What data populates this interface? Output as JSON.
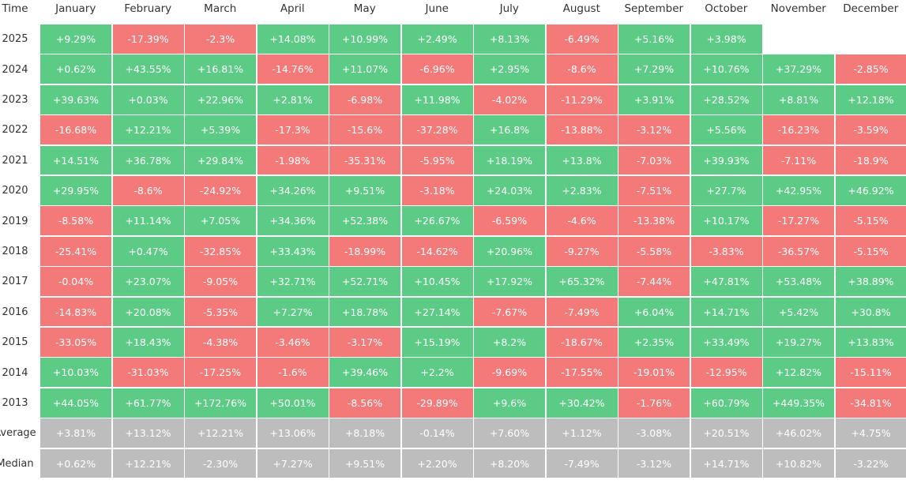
{
  "table": {
    "header": [
      "Time",
      "January",
      "February",
      "March",
      "April",
      "May",
      "June",
      "July",
      "August",
      "September",
      "October",
      "November",
      "December"
    ],
    "colors": {
      "up": "#5ccb85",
      "down": "#f47a7a",
      "stat": "#bdbdbd"
    },
    "rows": [
      {
        "label": "2025",
        "cells": [
          "+9.29%",
          "-17.39%",
          "-2.3%",
          "+14.08%",
          "+10.99%",
          "+2.49%",
          "+8.13%",
          "-6.49%",
          "+5.16%",
          "+3.98%"
        ]
      },
      {
        "label": "2024",
        "cells": [
          "+0.62%",
          "+43.55%",
          "+16.81%",
          "-14.76%",
          "+11.07%",
          "-6.96%",
          "+2.95%",
          "-8.6%",
          "+7.29%",
          "+10.76%",
          "+37.29%",
          "-2.85%"
        ]
      },
      {
        "label": "2023",
        "cells": [
          "+39.63%",
          "+0.03%",
          "+22.96%",
          "+2.81%",
          "-6.98%",
          "+11.98%",
          "-4.02%",
          "-11.29%",
          "+3.91%",
          "+28.52%",
          "+8.81%",
          "+12.18%"
        ]
      },
      {
        "label": "2022",
        "cells": [
          "-16.68%",
          "+12.21%",
          "+5.39%",
          "-17.3%",
          "-15.6%",
          "-37.28%",
          "+16.8%",
          "-13.88%",
          "-3.12%",
          "+5.56%",
          "-16.23%",
          "-3.59%"
        ]
      },
      {
        "label": "2021",
        "cells": [
          "+14.51%",
          "+36.78%",
          "+29.84%",
          "-1.98%",
          "-35.31%",
          "-5.95%",
          "+18.19%",
          "+13.8%",
          "-7.03%",
          "+39.93%",
          "-7.11%",
          "-18.9%"
        ]
      },
      {
        "label": "2020",
        "cells": [
          "+29.95%",
          "-8.6%",
          "-24.92%",
          "+34.26%",
          "+9.51%",
          "-3.18%",
          "+24.03%",
          "+2.83%",
          "-7.51%",
          "+27.7%",
          "+42.95%",
          "+46.92%"
        ]
      },
      {
        "label": "2019",
        "cells": [
          "-8.58%",
          "+11.14%",
          "+7.05%",
          "+34.36%",
          "+52.38%",
          "+26.67%",
          "-6.59%",
          "-4.6%",
          "-13.38%",
          "+10.17%",
          "-17.27%",
          "-5.15%"
        ]
      },
      {
        "label": "2018",
        "cells": [
          "-25.41%",
          "+0.47%",
          "-32.85%",
          "+33.43%",
          "-18.99%",
          "-14.62%",
          "+20.96%",
          "-9.27%",
          "-5.58%",
          "-3.83%",
          "-36.57%",
          "-5.15%"
        ]
      },
      {
        "label": "2017",
        "cells": [
          "-0.04%",
          "+23.07%",
          "-9.05%",
          "+32.71%",
          "+52.71%",
          "+10.45%",
          "+17.92%",
          "+65.32%",
          "-7.44%",
          "+47.81%",
          "+53.48%",
          "+38.89%"
        ]
      },
      {
        "label": "2016",
        "cells": [
          "-14.83%",
          "+20.08%",
          "-5.35%",
          "+7.27%",
          "+18.78%",
          "+27.14%",
          "-7.67%",
          "-7.49%",
          "+6.04%",
          "+14.71%",
          "+5.42%",
          "+30.8%"
        ]
      },
      {
        "label": "2015",
        "cells": [
          "-33.05%",
          "+18.43%",
          "-4.38%",
          "-3.46%",
          "-3.17%",
          "+15.19%",
          "+8.2%",
          "-18.67%",
          "+2.35%",
          "+33.49%",
          "+19.27%",
          "+13.83%"
        ]
      },
      {
        "label": "2014",
        "cells": [
          "+10.03%",
          "-31.03%",
          "-17.25%",
          "-1.6%",
          "+39.46%",
          "+2.2%",
          "-9.69%",
          "-17.55%",
          "-19.01%",
          "-12.95%",
          "+12.82%",
          "-15.11%"
        ]
      },
      {
        "label": "2013",
        "cells": [
          "+44.05%",
          "+61.77%",
          "+172.76%",
          "+50.01%",
          "-8.56%",
          "-29.89%",
          "+9.6%",
          "+30.42%",
          "-1.76%",
          "+60.79%",
          "+449.35%",
          "-34.81%"
        ]
      },
      {
        "label": "Average",
        "stat": true,
        "cells": [
          "+3.81%",
          "+13.12%",
          "+12.21%",
          "+13.06%",
          "+8.18%",
          "-0.14%",
          "+7.60%",
          "+1.12%",
          "-3.08%",
          "+20.51%",
          "+46.02%",
          "+4.75%"
        ]
      },
      {
        "label": "Median",
        "stat": true,
        "cells": [
          "+0.62%",
          "+12.21%",
          "-2.30%",
          "+7.27%",
          "+9.51%",
          "+2.20%",
          "+8.20%",
          "-7.49%",
          "-3.12%",
          "+14.71%",
          "+10.82%",
          "-3.22%"
        ]
      }
    ]
  }
}
